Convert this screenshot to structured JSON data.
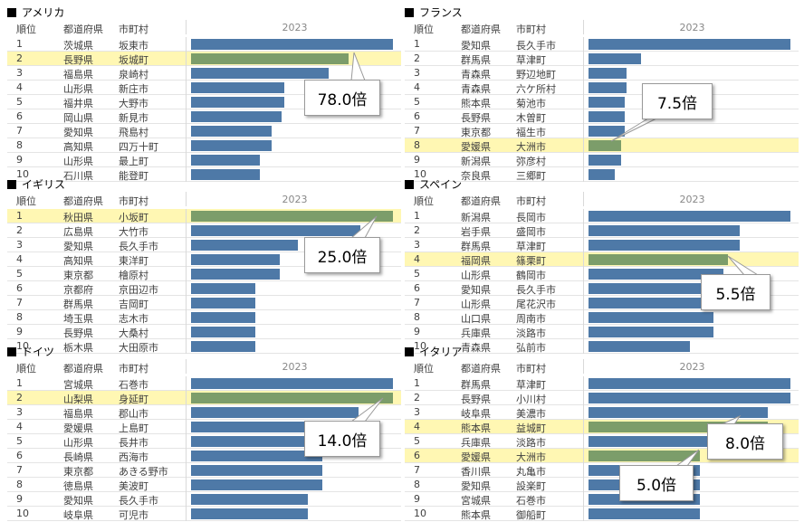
{
  "chart_data": [
    {
      "type": "bar",
      "title": "アメリカ",
      "columns": [
        "順位",
        "都道府県",
        "市町村"
      ],
      "year": "2023",
      "rows": [
        {
          "rank": "1",
          "pref": "茨城県",
          "city": "坂東市",
          "value": 100,
          "highlight": false
        },
        {
          "rank": "2",
          "pref": "長野県",
          "city": "坂城町",
          "value": 78,
          "highlight": true
        },
        {
          "rank": "3",
          "pref": "福島県",
          "city": "泉崎村",
          "value": 68,
          "highlight": false
        },
        {
          "rank": "4",
          "pref": "山形県",
          "city": "新庄市",
          "value": 46,
          "highlight": false
        },
        {
          "rank": "5",
          "pref": "福井県",
          "city": "大野市",
          "value": 46,
          "highlight": false
        },
        {
          "rank": "6",
          "pref": "岡山県",
          "city": "新見市",
          "value": 45,
          "highlight": false
        },
        {
          "rank": "7",
          "pref": "愛知県",
          "city": "飛島村",
          "value": 40,
          "highlight": false
        },
        {
          "rank": "8",
          "pref": "高知県",
          "city": "四万十町",
          "value": 40,
          "highlight": false
        },
        {
          "rank": "9",
          "pref": "山形県",
          "city": "最上町",
          "value": 34,
          "highlight": false
        },
        {
          "rank": "10",
          "pref": "石川県",
          "city": "能登町",
          "value": 34,
          "highlight": false
        }
      ],
      "callouts": [
        {
          "text": "78.0倍"
        }
      ]
    },
    {
      "type": "bar",
      "title": "フランス",
      "columns": [
        "順位",
        "都道府県",
        "市町村"
      ],
      "year": "2023",
      "rows": [
        {
          "rank": "1",
          "pref": "愛知県",
          "city": "長久手市",
          "value": 100,
          "highlight": false
        },
        {
          "rank": "2",
          "pref": "群馬県",
          "city": "草津町",
          "value": 26,
          "highlight": false
        },
        {
          "rank": "3",
          "pref": "青森県",
          "city": "野辺地町",
          "value": 19,
          "highlight": false
        },
        {
          "rank": "4",
          "pref": "青森県",
          "city": "六ケ所村",
          "value": 19,
          "highlight": false
        },
        {
          "rank": "5",
          "pref": "熊本県",
          "city": "菊池市",
          "value": 18,
          "highlight": false
        },
        {
          "rank": "6",
          "pref": "長野県",
          "city": "木曽町",
          "value": 18,
          "highlight": false
        },
        {
          "rank": "7",
          "pref": "東京都",
          "city": "福生市",
          "value": 18,
          "highlight": false
        },
        {
          "rank": "8",
          "pref": "愛媛県",
          "city": "大洲市",
          "value": 16,
          "highlight": true
        },
        {
          "rank": "9",
          "pref": "新潟県",
          "city": "弥彦村",
          "value": 16,
          "highlight": false
        },
        {
          "rank": "10",
          "pref": "奈良県",
          "city": "三郷町",
          "value": 13,
          "highlight": false
        }
      ],
      "callouts": [
        {
          "text": "7.5倍"
        }
      ]
    },
    {
      "type": "bar",
      "title": "イギリス",
      "columns": [
        "順位",
        "都道府県",
        "市町村"
      ],
      "year": "2023",
      "rows": [
        {
          "rank": "1",
          "pref": "秋田県",
          "city": "小坂町",
          "value": 100,
          "highlight": true
        },
        {
          "rank": "2",
          "pref": "広島県",
          "city": "大竹市",
          "value": 84,
          "highlight": false
        },
        {
          "rank": "3",
          "pref": "愛知県",
          "city": "長久手市",
          "value": 53,
          "highlight": false
        },
        {
          "rank": "4",
          "pref": "高知県",
          "city": "東洋町",
          "value": 44,
          "highlight": false
        },
        {
          "rank": "5",
          "pref": "東京都",
          "city": "檜原村",
          "value": 44,
          "highlight": false
        },
        {
          "rank": "6",
          "pref": "京都府",
          "city": "京田辺市",
          "value": 32,
          "highlight": false
        },
        {
          "rank": "7",
          "pref": "群馬県",
          "city": "吉岡町",
          "value": 32,
          "highlight": false
        },
        {
          "rank": "8",
          "pref": "埼玉県",
          "city": "志木市",
          "value": 32,
          "highlight": false
        },
        {
          "rank": "9",
          "pref": "長野県",
          "city": "大桑村",
          "value": 32,
          "highlight": false
        },
        {
          "rank": "10",
          "pref": "栃木県",
          "city": "大田原市",
          "value": 32,
          "highlight": false
        }
      ],
      "callouts": [
        {
          "text": "25.0倍"
        }
      ]
    },
    {
      "type": "bar",
      "title": "スペイン",
      "columns": [
        "順位",
        "都道府県",
        "市町村"
      ],
      "year": "2023",
      "rows": [
        {
          "rank": "1",
          "pref": "新潟県",
          "city": "長岡市",
          "value": 100,
          "highlight": false
        },
        {
          "rank": "2",
          "pref": "岩手県",
          "city": "盛岡市",
          "value": 75,
          "highlight": false
        },
        {
          "rank": "3",
          "pref": "群馬県",
          "city": "草津町",
          "value": 75,
          "highlight": false
        },
        {
          "rank": "4",
          "pref": "福岡県",
          "city": "篠栗町",
          "value": 69,
          "highlight": true
        },
        {
          "rank": "5",
          "pref": "山形県",
          "city": "鶴岡市",
          "value": 67,
          "highlight": false
        },
        {
          "rank": "6",
          "pref": "愛知県",
          "city": "長久手市",
          "value": 62,
          "highlight": false
        },
        {
          "rank": "7",
          "pref": "山形県",
          "city": "尾花沢市",
          "value": 62,
          "highlight": false
        },
        {
          "rank": "8",
          "pref": "山口県",
          "city": "周南市",
          "value": 62,
          "highlight": false
        },
        {
          "rank": "9",
          "pref": "兵庫県",
          "city": "淡路市",
          "value": 62,
          "highlight": false
        },
        {
          "rank": "10",
          "pref": "青森県",
          "city": "弘前市",
          "value": 50,
          "highlight": false
        }
      ],
      "callouts": [
        {
          "text": "5.5倍"
        }
      ]
    },
    {
      "type": "bar",
      "title": "ドイツ",
      "columns": [
        "順位",
        "都道府県",
        "市町村"
      ],
      "year": "2023",
      "rows": [
        {
          "rank": "1",
          "pref": "宮城県",
          "city": "石巻市",
          "value": 100,
          "highlight": false
        },
        {
          "rank": "2",
          "pref": "山梨県",
          "city": "身延町",
          "value": 100,
          "highlight": true
        },
        {
          "rank": "3",
          "pref": "福島県",
          "city": "郡山市",
          "value": 83,
          "highlight": false
        },
        {
          "rank": "4",
          "pref": "愛媛県",
          "city": "上島町",
          "value": 65,
          "highlight": false
        },
        {
          "rank": "5",
          "pref": "山形県",
          "city": "長井市",
          "value": 65,
          "highlight": false
        },
        {
          "rank": "6",
          "pref": "長崎県",
          "city": "西海市",
          "value": 65,
          "highlight": false
        },
        {
          "rank": "7",
          "pref": "東京都",
          "city": "あきる野市",
          "value": 65,
          "highlight": false
        },
        {
          "rank": "8",
          "pref": "徳島県",
          "city": "美波町",
          "value": 65,
          "highlight": false
        },
        {
          "rank": "9",
          "pref": "愛知県",
          "city": "長久手市",
          "value": 58,
          "highlight": false
        },
        {
          "rank": "10",
          "pref": "岐阜県",
          "city": "可児市",
          "value": 58,
          "highlight": false
        }
      ],
      "callouts": [
        {
          "text": "14.0倍"
        }
      ]
    },
    {
      "type": "bar",
      "title": "イタリア",
      "columns": [
        "順位",
        "都道府県",
        "市町村"
      ],
      "year": "2023",
      "rows": [
        {
          "rank": "1",
          "pref": "群馬県",
          "city": "草津町",
          "value": 100,
          "highlight": false
        },
        {
          "rank": "2",
          "pref": "長野県",
          "city": "小川村",
          "value": 100,
          "highlight": false
        },
        {
          "rank": "3",
          "pref": "岐阜県",
          "city": "美濃市",
          "value": 89,
          "highlight": false
        },
        {
          "rank": "4",
          "pref": "熊本県",
          "city": "益城町",
          "value": 89,
          "highlight": true
        },
        {
          "rank": "5",
          "pref": "兵庫県",
          "city": "淡路市",
          "value": 89,
          "highlight": false
        },
        {
          "rank": "6",
          "pref": "愛媛県",
          "city": "大洲市",
          "value": 55,
          "highlight": true
        },
        {
          "rank": "7",
          "pref": "香川県",
          "city": "丸亀市",
          "value": 55,
          "highlight": false
        },
        {
          "rank": "8",
          "pref": "愛知県",
          "city": "設楽町",
          "value": 55,
          "highlight": false
        },
        {
          "rank": "9",
          "pref": "宮城県",
          "city": "石巻市",
          "value": 55,
          "highlight": false
        },
        {
          "rank": "10",
          "pref": "熊本県",
          "city": "御船町",
          "value": 55,
          "highlight": false
        }
      ],
      "callouts": [
        {
          "text": "8.0倍"
        },
        {
          "text": "5.0倍"
        }
      ]
    }
  ]
}
